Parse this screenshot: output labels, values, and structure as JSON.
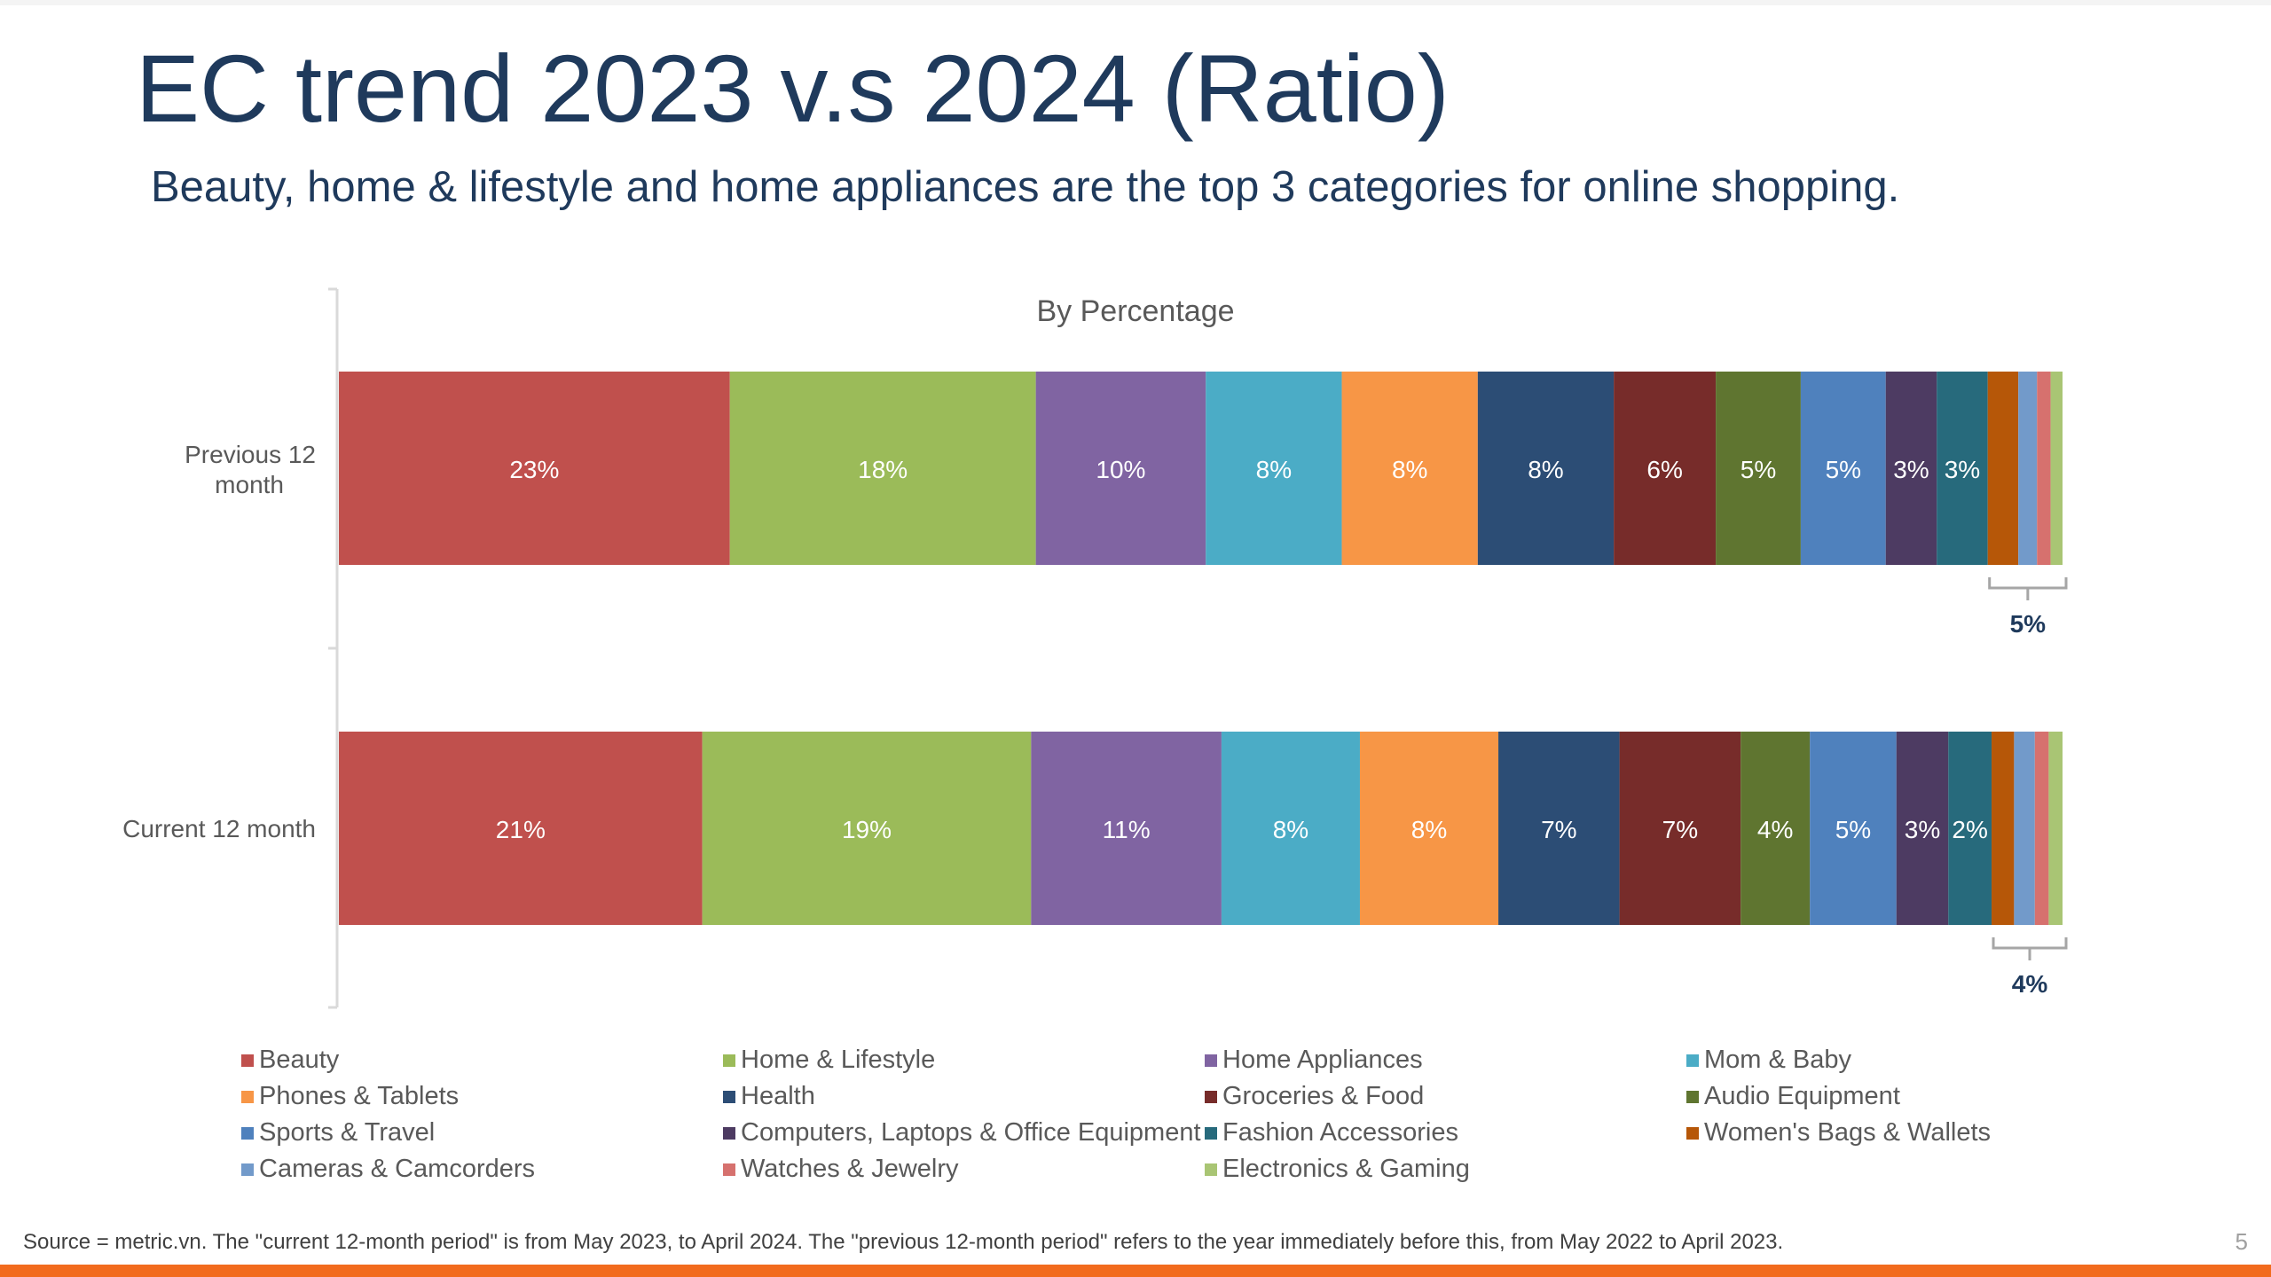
{
  "title": "EC trend 2023 v.s 2024 (Ratio)",
  "subtitle": "Beauty, home & lifestyle and home appliances are the top 3 categories for online shopping.",
  "source": "Source = metric.vn. The \"current 12-month period\" is from May 2023, to April 2024. The \"previous 12-month period\" refers to the year immediately before this, from May 2022 to April 2023.",
  "page_number": "5",
  "chart_data": {
    "type": "bar",
    "orientation": "horizontal-stacked-100",
    "title": "By Percentage",
    "categories": [
      "Previous 12 month",
      "Current 12 month"
    ],
    "series": [
      {
        "name": "Beauty",
        "color": "#c0504d",
        "values": [
          23,
          21
        ],
        "labels": [
          "23%",
          "21%"
        ]
      },
      {
        "name": "Home & Lifestyle",
        "color": "#9bbb59",
        "values": [
          18,
          19
        ],
        "labels": [
          "18%",
          "19%"
        ]
      },
      {
        "name": "Home Appliances",
        "color": "#8064a2",
        "values": [
          10,
          11
        ],
        "labels": [
          "10%",
          "11%"
        ]
      },
      {
        "name": "Mom & Baby",
        "color": "#4bacc6",
        "values": [
          8,
          8
        ],
        "labels": [
          "8%",
          "8%"
        ]
      },
      {
        "name": "Phones & Tablets",
        "color": "#f79646",
        "values": [
          8,
          8
        ],
        "labels": [
          "8%",
          "8%"
        ]
      },
      {
        "name": "Health",
        "color": "#2c4d75",
        "values": [
          8,
          7
        ],
        "labels": [
          "8%",
          "7%"
        ]
      },
      {
        "name": "Groceries & Food",
        "color": "#772c2a",
        "values": [
          6,
          7
        ],
        "labels": [
          "6%",
          "7%"
        ]
      },
      {
        "name": "Audio Equipment",
        "color": "#5f7530",
        "values": [
          5,
          4
        ],
        "labels": [
          "5%",
          "4%"
        ]
      },
      {
        "name": "Sports & Travel",
        "color": "#4f81bd",
        "values": [
          5,
          5
        ],
        "labels": [
          "5%",
          "5%"
        ]
      },
      {
        "name": "Computers, Laptops & Office Equipment",
        "color": "#4d3b62",
        "values": [
          3,
          3
        ],
        "labels": [
          "3%",
          "3%"
        ]
      },
      {
        "name": "Fashion Accessories",
        "color": "#276a7c",
        "values": [
          3,
          2.5
        ],
        "labels": [
          "3%",
          "2%"
        ]
      },
      {
        "name": "Women's Bags & Wallets",
        "color": "#b65708",
        "values": [
          1.8,
          1.3
        ],
        "labels": [
          "",
          ""
        ]
      },
      {
        "name": "Cameras & Camcorders",
        "color": "#729aca",
        "values": [
          1.1,
          1.2
        ],
        "labels": [
          "",
          ""
        ]
      },
      {
        "name": "Watches & Jewelry",
        "color": "#d6716e",
        "values": [
          0.8,
          0.8
        ],
        "labels": [
          "",
          ""
        ]
      },
      {
        "name": "Electronics & Gaming",
        "color": "#a9c574",
        "values": [
          0.7,
          0.8
        ],
        "labels": [
          "",
          ""
        ]
      }
    ],
    "bracket_labels": [
      "5%",
      "4%"
    ],
    "xlim": [
      0,
      100
    ],
    "legend_position": "bottom"
  }
}
